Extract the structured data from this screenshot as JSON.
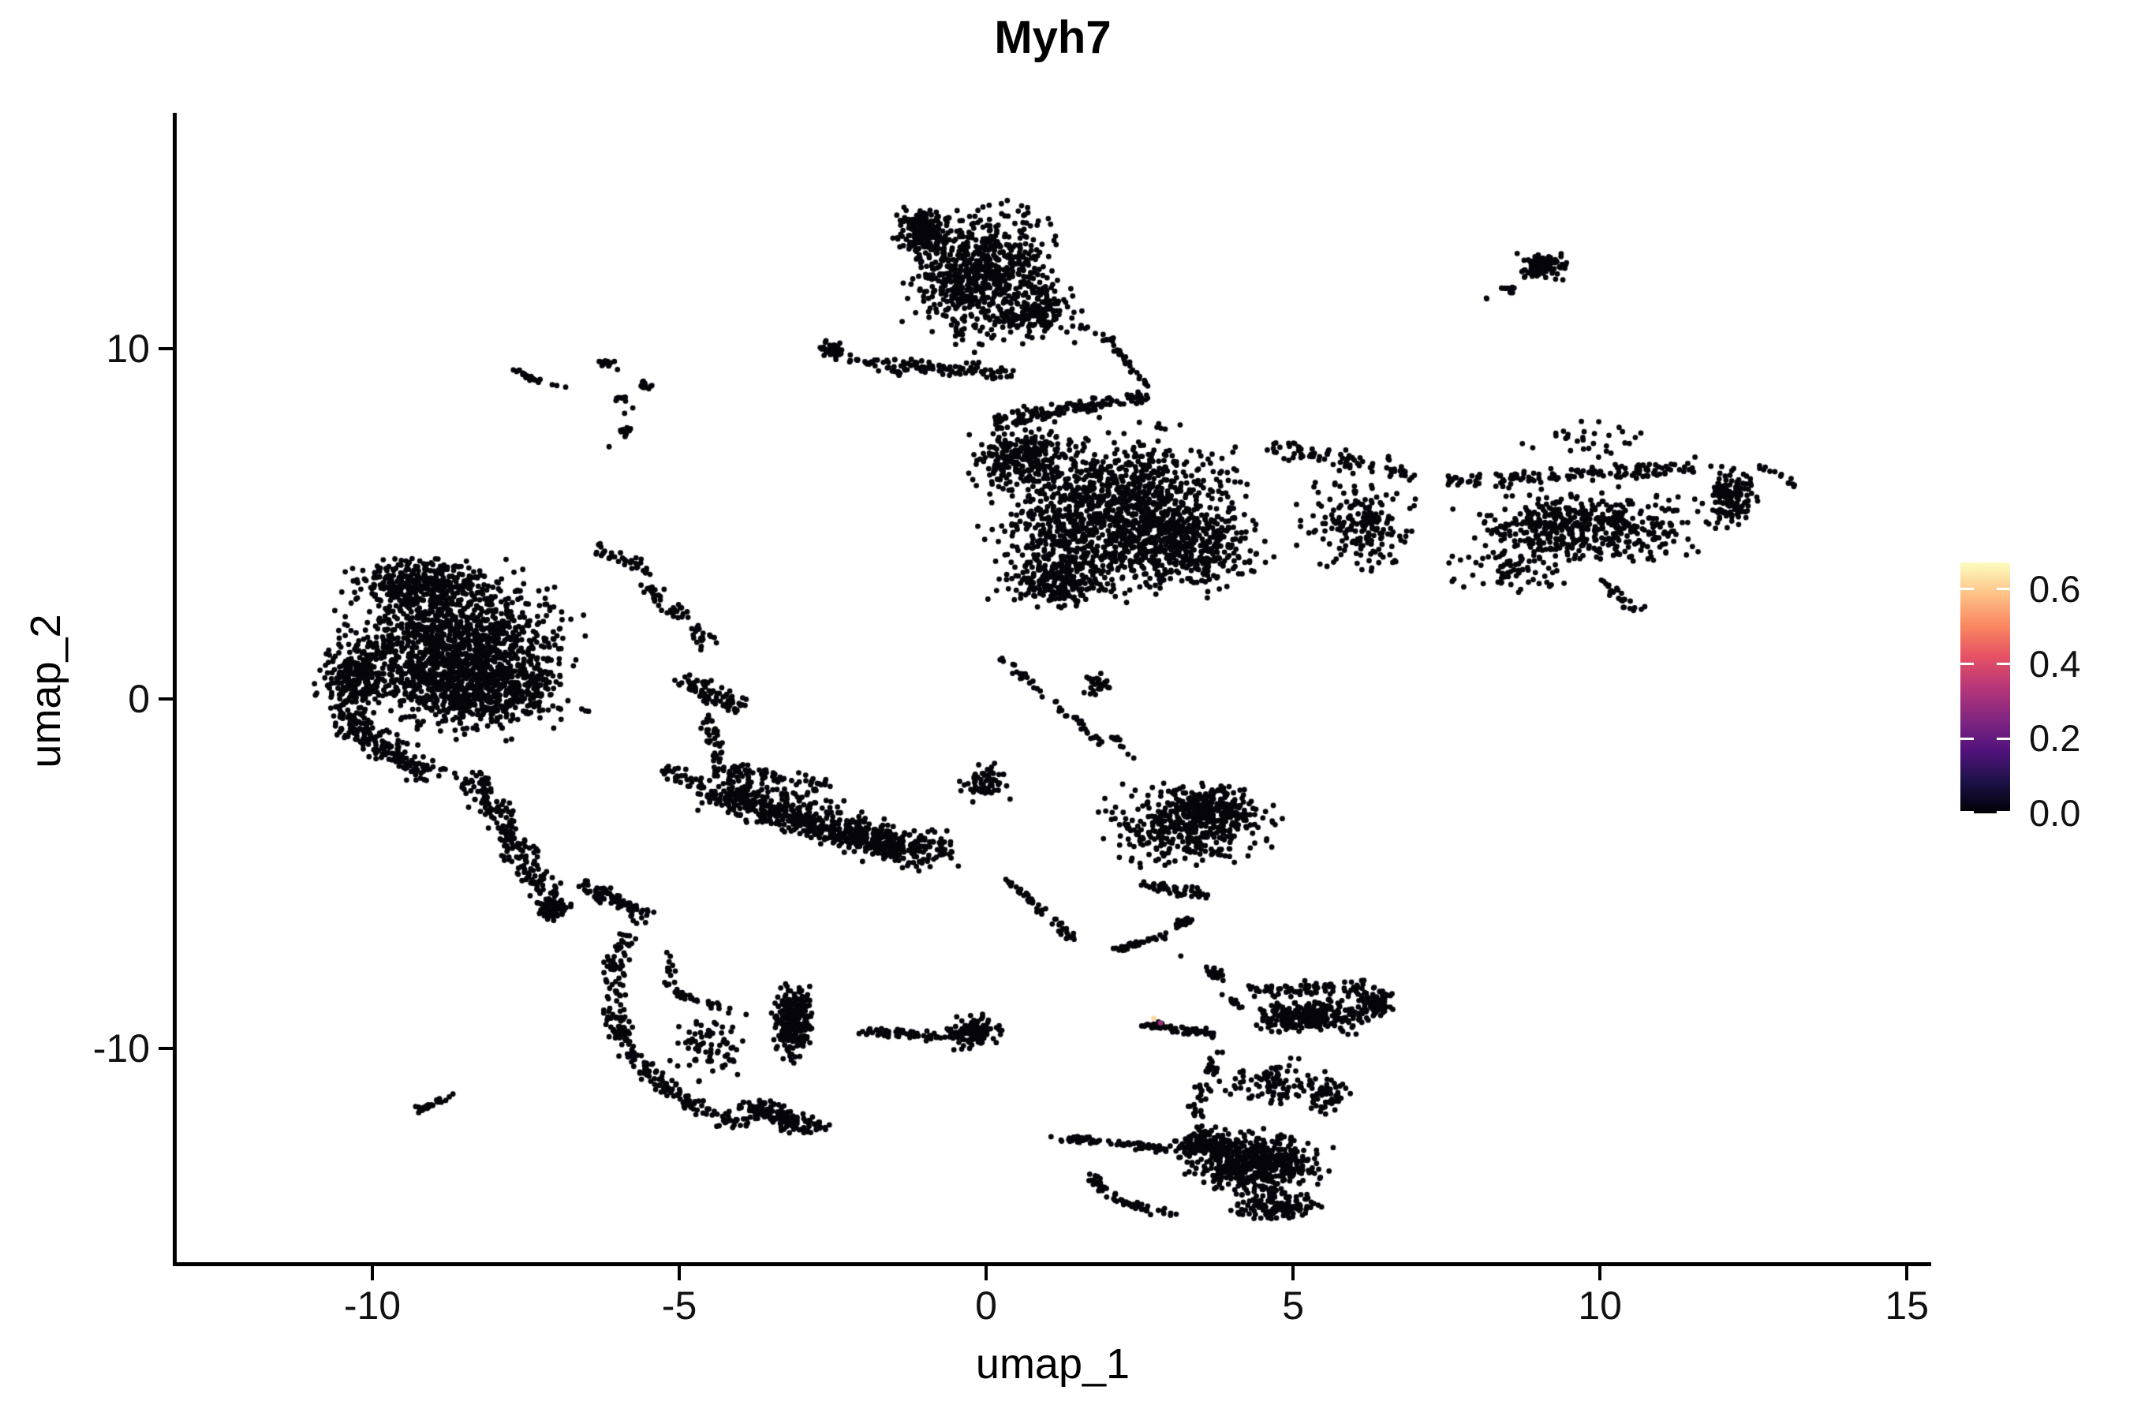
{
  "title": "Myh7",
  "chart_data": {
    "type": "scatter",
    "title": "Myh7",
    "xlabel": "umap_1",
    "ylabel": "umap_2",
    "xlim": [
      -13.2,
      15.37
    ],
    "ylim": [
      -16.1,
      16.7
    ],
    "grid": false,
    "legend_position": "right",
    "point_color": "#06050b",
    "point_radius": 3.4,
    "x_ticks": [
      {
        "v": -10,
        "label": "-10"
      },
      {
        "v": -5,
        "label": "-5"
      },
      {
        "v": 0,
        "label": "0"
      },
      {
        "v": 5,
        "label": "5"
      },
      {
        "v": 10,
        "label": "10"
      },
      {
        "v": 15,
        "label": "15"
      }
    ],
    "y_ticks": [
      {
        "v": 10,
        "label": "10"
      },
      {
        "v": 0,
        "label": "0"
      },
      {
        "v": -10,
        "label": "-10"
      }
    ],
    "legend": {
      "max": 0.6715,
      "colormap": "magma",
      "ticks": [
        {
          "v": 0.6,
          "label": "0.6"
        },
        {
          "v": 0.4,
          "label": "0.4"
        },
        {
          "v": 0.2,
          "label": "0.2"
        },
        {
          "v": 0.0,
          "label": "0.0"
        }
      ],
      "stops": [
        [
          0,
          "#000004"
        ],
        [
          0.125,
          "#1d1147"
        ],
        [
          0.25,
          "#51127c"
        ],
        [
          0.375,
          "#822681"
        ],
        [
          0.5,
          "#b63679"
        ],
        [
          0.625,
          "#e65164"
        ],
        [
          0.75,
          "#fb8861"
        ],
        [
          0.875,
          "#fec287"
        ],
        [
          1,
          "#fcfdbf"
        ]
      ]
    },
    "clusters": [
      {
        "name": "top-center",
        "shapes": [
          {
            "t": "blob",
            "cx": -0.1,
            "cy": 12.1,
            "rx": 1.55,
            "ry": 2.5,
            "n": 700
          },
          {
            "t": "blob",
            "cx": -1.05,
            "cy": 13.35,
            "rx": 0.6,
            "ry": 0.8,
            "n": 160
          },
          {
            "t": "blob",
            "cx": 0.85,
            "cy": 11.1,
            "rx": 0.85,
            "ry": 1.0,
            "n": 160
          },
          {
            "t": "streak",
            "x1": -1.6,
            "y1": 9.6,
            "x2": 0.4,
            "y2": 9.3,
            "w": 0.3,
            "n": 90
          },
          {
            "t": "blob",
            "cx": -2.5,
            "cy": 10.0,
            "rx": 0.24,
            "ry": 0.38,
            "n": 40
          },
          {
            "t": "streak",
            "x1": -2.25,
            "y1": 9.7,
            "x2": -1.3,
            "y2": 9.4,
            "w": 0.28,
            "n": 30
          },
          {
            "t": "streak",
            "x1": 2.0,
            "y1": 10.25,
            "x2": 2.6,
            "y2": 8.95,
            "w": 0.12,
            "n": 30
          },
          {
            "t": "blob",
            "cx": 2.45,
            "cy": 8.6,
            "rx": 0.22,
            "ry": 0.3,
            "n": 25
          },
          {
            "t": "streak",
            "x1": 1.5,
            "y1": 10.7,
            "x2": 1.95,
            "y2": 10.3,
            "w": 0.1,
            "n": 7
          }
        ]
      },
      {
        "name": "top-right-small",
        "shapes": [
          {
            "t": "blob",
            "cx": 9.05,
            "cy": 12.35,
            "rx": 0.55,
            "ry": 0.5,
            "n": 110
          },
          {
            "t": "blob",
            "cx": 8.5,
            "cy": 11.7,
            "rx": 0.2,
            "ry": 0.22,
            "n": 14
          },
          {
            "t": "blob",
            "cx": 8.15,
            "cy": 11.45,
            "rx": 0.03,
            "ry": 0.03,
            "n": 2
          }
        ]
      },
      {
        "name": "right-center-large",
        "shapes": [
          {
            "t": "blob",
            "cx": 2.1,
            "cy": 5.3,
            "rx": 2.6,
            "ry": 2.9,
            "n": 1300
          },
          {
            "t": "blob",
            "cx": 0.6,
            "cy": 6.9,
            "rx": 1.1,
            "ry": 1.1,
            "n": 220
          },
          {
            "t": "blob",
            "cx": 3.4,
            "cy": 4.3,
            "rx": 1.4,
            "ry": 1.5,
            "n": 280
          },
          {
            "t": "blob",
            "cx": 1.1,
            "cy": 3.4,
            "rx": 1.2,
            "ry": 1.1,
            "n": 220
          },
          {
            "t": "streak",
            "x1": 0.1,
            "y1": 7.9,
            "x2": 2.2,
            "y2": 8.5,
            "w": 0.35,
            "n": 110
          },
          {
            "t": "blob",
            "cx": 6.0,
            "cy": 5.0,
            "rx": 1.25,
            "ry": 1.7,
            "n": 190
          },
          {
            "t": "streak",
            "x1": 4.6,
            "y1": 7.2,
            "x2": 7.0,
            "y2": 6.4,
            "w": 0.4,
            "n": 80
          },
          {
            "t": "blob",
            "cx": 9.7,
            "cy": 4.9,
            "rx": 2.3,
            "ry": 1.4,
            "n": 480
          },
          {
            "t": "streak",
            "x1": 7.6,
            "y1": 6.2,
            "x2": 11.6,
            "y2": 6.6,
            "w": 0.35,
            "n": 140
          },
          {
            "t": "blob",
            "cx": 12.15,
            "cy": 5.7,
            "rx": 0.6,
            "ry": 1.15,
            "n": 150
          },
          {
            "t": "streak",
            "x1": 10.0,
            "y1": 3.4,
            "x2": 10.6,
            "y2": 2.55,
            "w": 0.2,
            "n": 28
          },
          {
            "t": "blob",
            "cx": 8.6,
            "cy": 3.7,
            "rx": 1.2,
            "ry": 0.8,
            "n": 70
          },
          {
            "t": "streak",
            "x1": 0.2,
            "y1": 1.2,
            "x2": 1.9,
            "y2": -1.3,
            "w": 0.15,
            "n": 45
          },
          {
            "t": "blob",
            "cx": 1.8,
            "cy": 0.4,
            "rx": 0.35,
            "ry": 0.45,
            "n": 30
          },
          {
            "t": "streak",
            "x1": 2.0,
            "y1": -1.0,
            "x2": 2.45,
            "y2": -1.7,
            "w": 0.1,
            "n": 10
          },
          {
            "t": "blob",
            "cx": 9.9,
            "cy": 7.4,
            "rx": 1.5,
            "ry": 0.7,
            "n": 30
          },
          {
            "t": "streak",
            "x1": 12.5,
            "y1": 6.7,
            "x2": 13.4,
            "y2": 5.95,
            "w": 0.15,
            "n": 14
          }
        ]
      },
      {
        "name": "left-large",
        "shapes": [
          {
            "t": "blob",
            "cx": -8.6,
            "cy": 1.3,
            "rx": 2.3,
            "ry": 2.9,
            "n": 1500
          },
          {
            "t": "blob",
            "cx": -9.2,
            "cy": 3.3,
            "rx": 1.5,
            "ry": 0.85,
            "n": 320
          },
          {
            "t": "blob",
            "cx": -10.3,
            "cy": 0.6,
            "rx": 0.75,
            "ry": 1.6,
            "n": 240
          },
          {
            "t": "blob",
            "cx": -8.0,
            "cy": 0.2,
            "rx": 1.4,
            "ry": 1.2,
            "n": 280
          },
          {
            "t": "streak",
            "x1": -10.55,
            "y1": -0.6,
            "x2": -9.0,
            "y2": -2.2,
            "w": 0.5,
            "n": 170
          },
          {
            "t": "streak",
            "x1": -8.35,
            "y1": -2.2,
            "x2": -7.1,
            "y2": -5.9,
            "w": 0.45,
            "n": 210
          },
          {
            "t": "blob",
            "cx": -7.05,
            "cy": -6.0,
            "rx": 0.38,
            "ry": 0.45,
            "n": 60
          },
          {
            "t": "streak",
            "x1": -6.6,
            "y1": -5.3,
            "x2": -5.5,
            "y2": -6.25,
            "w": 0.3,
            "n": 75
          },
          {
            "t": "streak",
            "x1": -5.3,
            "y1": -2.0,
            "x2": -3.35,
            "y2": -3.35,
            "w": 0.35,
            "n": 85
          },
          {
            "t": "streak",
            "x1": -5.6,
            "y1": 3.3,
            "x2": -4.45,
            "y2": 1.5,
            "w": 0.3,
            "n": 55
          },
          {
            "t": "streak",
            "x1": -6.4,
            "y1": 4.3,
            "x2": -5.4,
            "y2": 3.6,
            "w": 0.25,
            "n": 35
          },
          {
            "t": "streak",
            "x1": -4.9,
            "y1": 0.6,
            "x2": -4.0,
            "y2": -0.35,
            "w": 0.35,
            "n": 85
          },
          {
            "t": "streak",
            "x1": -4.5,
            "y1": -0.5,
            "x2": -4.4,
            "y2": -1.8,
            "w": 0.22,
            "n": 35
          }
        ]
      },
      {
        "name": "middle-band",
        "shapes": [
          {
            "t": "streak",
            "x1": -4.4,
            "y1": -2.6,
            "x2": -0.7,
            "y2": -4.5,
            "w": 0.85,
            "n": 480
          },
          {
            "t": "streak",
            "x1": -3.6,
            "y1": -3.3,
            "x2": -1.4,
            "y2": -4.4,
            "w": 0.4,
            "n": 180
          },
          {
            "t": "streak",
            "x1": -4.45,
            "y1": -1.9,
            "x2": -2.6,
            "y2": -2.5,
            "w": 0.3,
            "n": 70
          },
          {
            "t": "blob",
            "cx": 0.0,
            "cy": -2.4,
            "rx": 0.55,
            "ry": 0.75,
            "n": 65
          },
          {
            "t": "streak",
            "x1": 0.35,
            "y1": -5.2,
            "x2": 1.45,
            "y2": -6.9,
            "w": 0.18,
            "n": 45
          },
          {
            "t": "blob",
            "cx": 3.3,
            "cy": -3.6,
            "rx": 1.7,
            "ry": 1.55,
            "n": 380
          },
          {
            "t": "blob",
            "cx": 3.6,
            "cy": -3.1,
            "rx": 1.1,
            "ry": 0.85,
            "n": 180
          },
          {
            "t": "streak",
            "x1": 2.5,
            "y1": -5.3,
            "x2": 3.6,
            "y2": -5.6,
            "w": 0.22,
            "n": 45
          }
        ]
      },
      {
        "name": "bottom-left-arc",
        "shapes": [
          {
            "t": "curve",
            "x1": -5.9,
            "y1": -6.8,
            "cx": -6.7,
            "cy": -10.6,
            "x2": -3.9,
            "y2": -12.25,
            "w": 0.3,
            "n": 240
          },
          {
            "t": "curve",
            "x1": -5.1,
            "y1": -7.3,
            "cx": -5.45,
            "cy": -8.45,
            "x2": -4.3,
            "y2": -8.8,
            "w": 0.16,
            "n": 40
          },
          {
            "t": "blob",
            "cx": -3.15,
            "cy": -9.2,
            "rx": 0.42,
            "ry": 1.35,
            "n": 260
          },
          {
            "t": "streak",
            "x1": -3.95,
            "y1": -11.6,
            "x2": -2.7,
            "y2": -12.35,
            "w": 0.38,
            "n": 150
          },
          {
            "t": "blob",
            "cx": -4.5,
            "cy": -9.9,
            "rx": 0.95,
            "ry": 1.3,
            "n": 80
          }
        ]
      },
      {
        "name": "bottom-center-lens",
        "shapes": [
          {
            "t": "streak",
            "x1": -2.05,
            "y1": -9.5,
            "x2": -0.7,
            "y2": -9.65,
            "w": 0.2,
            "n": 55
          },
          {
            "t": "blob",
            "cx": -0.2,
            "cy": -9.5,
            "rx": 0.55,
            "ry": 0.62,
            "n": 110
          }
        ]
      },
      {
        "name": "bottom-right-large",
        "shapes": [
          {
            "t": "streak",
            "x1": 2.1,
            "y1": -7.2,
            "x2": 2.95,
            "y2": -6.75,
            "w": 0.12,
            "n": 40
          },
          {
            "t": "blob",
            "cx": 3.2,
            "cy": -6.4,
            "rx": 0.24,
            "ry": 0.22,
            "n": 25
          },
          {
            "t": "blob",
            "cx": 3.16,
            "cy": -7.35,
            "rx": 0.02,
            "ry": 0.02,
            "n": 1
          },
          {
            "t": "blob",
            "cx": 3.7,
            "cy": -7.85,
            "rx": 0.25,
            "ry": 0.3,
            "n": 28
          },
          {
            "t": "streak",
            "x1": 3.85,
            "y1": -8.35,
            "x2": 4.2,
            "y2": -8.9,
            "w": 0.1,
            "n": 10
          },
          {
            "t": "blob",
            "cx": 5.3,
            "cy": -9.1,
            "rx": 1.2,
            "ry": 0.65,
            "n": 260
          },
          {
            "t": "blob",
            "cx": 6.35,
            "cy": -8.75,
            "rx": 0.4,
            "ry": 0.5,
            "n": 80
          },
          {
            "t": "streak",
            "x1": 4.3,
            "y1": -8.35,
            "x2": 6.3,
            "y2": -8.25,
            "w": 0.3,
            "n": 80
          },
          {
            "t": "streak",
            "x1": 2.55,
            "y1": -9.3,
            "x2": 3.8,
            "y2": -9.6,
            "w": 0.15,
            "n": 60
          },
          {
            "t": "blob",
            "cx": 4.6,
            "cy": -11.0,
            "rx": 1.1,
            "ry": 0.85,
            "n": 85
          },
          {
            "t": "streak",
            "x1": 3.75,
            "y1": -10.1,
            "x2": 3.4,
            "y2": -11.9,
            "w": 0.22,
            "n": 40
          },
          {
            "t": "blob",
            "cx": 5.55,
            "cy": -11.4,
            "rx": 0.4,
            "ry": 0.85,
            "n": 55
          },
          {
            "t": "blob",
            "cx": 4.4,
            "cy": -13.3,
            "rx": 1.35,
            "ry": 1.1,
            "n": 500
          },
          {
            "t": "blob",
            "cx": 3.55,
            "cy": -12.7,
            "rx": 0.6,
            "ry": 0.6,
            "n": 130
          },
          {
            "t": "blob",
            "cx": 4.7,
            "cy": -14.5,
            "rx": 0.9,
            "ry": 0.55,
            "n": 140
          },
          {
            "t": "streak",
            "x1": 1.05,
            "y1": -12.5,
            "x2": 3.2,
            "y2": -12.9,
            "w": 0.16,
            "n": 75
          },
          {
            "t": "curve",
            "x1": 1.75,
            "y1": -13.6,
            "cx": 2.0,
            "cy": -14.5,
            "x2": 3.1,
            "y2": -14.75,
            "w": 0.18,
            "n": 60
          }
        ]
      },
      {
        "name": "tiny-dash",
        "shapes": [
          {
            "t": "streak",
            "x1": -9.25,
            "y1": -11.75,
            "x2": -8.65,
            "y2": -11.35,
            "w": 0.14,
            "n": 32
          }
        ]
      },
      {
        "name": "upper-left-scatter",
        "shapes": [
          {
            "t": "streak",
            "x1": -7.75,
            "y1": 9.45,
            "x2": -7.3,
            "y2": 9.05,
            "w": 0.1,
            "n": 22
          },
          {
            "t": "streak",
            "x1": -7.15,
            "y1": 9.0,
            "x2": -6.85,
            "y2": 8.9,
            "w": 0.04,
            "n": 3
          },
          {
            "t": "blob",
            "cx": -6.2,
            "cy": 9.6,
            "rx": 0.18,
            "ry": 0.15,
            "n": 12
          },
          {
            "t": "blob",
            "cx": -6.0,
            "cy": 9.4,
            "rx": 0.02,
            "ry": 0.02,
            "n": 1
          },
          {
            "t": "blob",
            "cx": -5.55,
            "cy": 8.95,
            "rx": 0.18,
            "ry": 0.2,
            "n": 14
          },
          {
            "t": "blob",
            "cx": -5.95,
            "cy": 8.6,
            "rx": 0.15,
            "ry": 0.12,
            "n": 10
          },
          {
            "t": "blob",
            "cx": -5.75,
            "cy": 8.3,
            "rx": 0.02,
            "ry": 0.02,
            "n": 1
          },
          {
            "t": "blob",
            "cx": -5.9,
            "cy": 8.15,
            "rx": 0.02,
            "ry": 0.02,
            "n": 1
          },
          {
            "t": "blob",
            "cx": -5.88,
            "cy": 7.65,
            "rx": 0.13,
            "ry": 0.24,
            "n": 12
          },
          {
            "t": "blob",
            "cx": -6.15,
            "cy": 7.2,
            "rx": 0.02,
            "ry": 0.02,
            "n": 1
          }
        ]
      }
    ],
    "highlight_points": [
      {
        "x": 2.73,
        "y": -9.13,
        "value": 0.62
      },
      {
        "x": 2.84,
        "y": -9.26,
        "value": 0.3
      }
    ]
  }
}
